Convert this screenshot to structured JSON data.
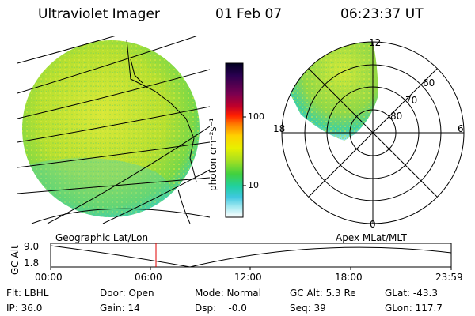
{
  "header": {
    "instrument": "Ultraviolet Imager",
    "date": "01 Feb 07",
    "time": "06:23:37 UT"
  },
  "colorbar": {
    "unit_label": "photon cm⁻²s⁻¹",
    "ticks": [
      "100",
      "10"
    ],
    "colors": [
      "#000020",
      "#2a0050",
      "#7a0050",
      "#c0002a",
      "#ff2000",
      "#ff8000",
      "#ffd000",
      "#e8f000",
      "#a8e020",
      "#40d040",
      "#20d0a0",
      "#40c8e0",
      "#a0e8f0",
      "#ffffff"
    ]
  },
  "polar_plot": {
    "lat_labels": [
      "80",
      "70",
      "60"
    ],
    "mlt_labels": {
      "top": "12",
      "left": "18",
      "right": "6",
      "bottom": "0"
    }
  },
  "timeline": {
    "left_label": "Geographic Lat/Lon",
    "right_label": "Apex MLat/MLT",
    "y_axis_label": "GC Alt",
    "y_ticks": [
      "9.0",
      "1.8"
    ],
    "x_ticks": [
      "00:00",
      "06:00",
      "12:00",
      "18:00",
      "23:59"
    ]
  },
  "footer": {
    "filter": "Flt: LBHL",
    "ip": "IP: 36.0",
    "door": "Door: Open",
    "gain": "Gain: 14",
    "mode": "Mode: Normal",
    "dsp": "Dsp:    -0.0",
    "gc_alt": "GC Alt: 5.3 Re",
    "seq": "Seq: 39",
    "glat": "GLat: -43.3",
    "glon": "GLon: 117.7"
  }
}
